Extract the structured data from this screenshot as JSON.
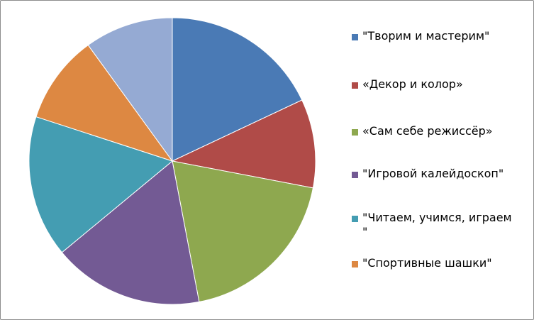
{
  "chart_data": {
    "type": "pie",
    "title": "",
    "legend_position": "right",
    "categories": [
      "\"Творим и мастерим\"",
      "«Декор и колор»",
      "«Сам себе режиссёр»",
      "\"Игровой калейдоскоп\"",
      "\"Читаем, учимся, играем\n\"",
      "\"Спортивные шашки\"",
      ""
    ],
    "values": [
      18,
      10,
      19,
      17,
      16,
      10,
      10
    ],
    "colors": [
      "#4a7ab5",
      "#b04b48",
      "#8ea84f",
      "#735a94",
      "#449db2",
      "#dd8842",
      "#95aad3"
    ]
  }
}
